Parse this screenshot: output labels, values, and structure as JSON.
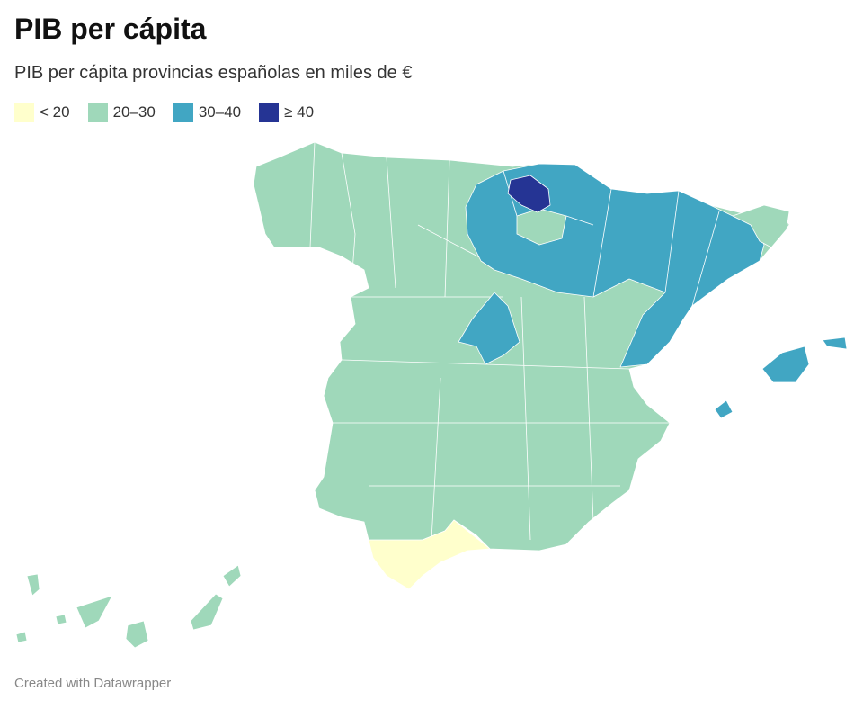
{
  "title": "PIB per cápita",
  "subtitle": "PIB per cápita provincias españolas en miles de €",
  "legend": [
    {
      "label": "< 20",
      "color": "#ffffcc"
    },
    {
      "label": "20–30",
      "color": "#9fd8ba"
    },
    {
      "label": "30–40",
      "color": "#41a6c3"
    },
    {
      "label": "≥ 40",
      "color": "#253494"
    }
  ],
  "footer": "Created with Datawrapper"
}
